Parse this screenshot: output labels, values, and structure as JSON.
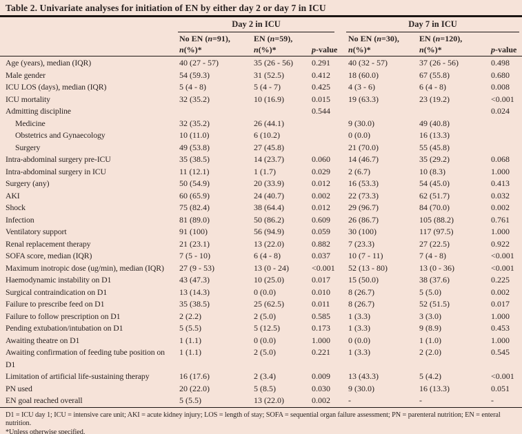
{
  "colors": {
    "background": "#f6e3d9",
    "text": "#2a2322",
    "rule": "#1b1513"
  },
  "title": "Table 2. Univariate analyses for initiation of EN by either day 2 or day 7 in ICU",
  "groups": {
    "day2": "Day 2 in ICU",
    "day7": "Day 7 in ICU"
  },
  "subheaders": {
    "d2_no": {
      "line1": "No EN (n=91),",
      "line2": "n(%)*"
    },
    "d2_en": {
      "line1": "EN (n=59),",
      "line2": "n(%)*"
    },
    "d2_p": {
      "line1": "",
      "line2": "p-value"
    },
    "d7_no": {
      "line1": "No EN (n=30),",
      "line2": "n(%)*"
    },
    "d7_en": {
      "line1": "EN (n=120),",
      "line2": "n(%)*"
    },
    "d7_p": {
      "line1": "",
      "line2": "p-value"
    }
  },
  "rows": [
    {
      "label": "Age (years), median (IQR)",
      "indent": false,
      "values": [
        "40 (27 - 57)",
        "35 (26 - 56)",
        "0.291",
        "40 (32 - 57)",
        "37 (26 - 56)",
        "0.498"
      ]
    },
    {
      "label": "Male gender",
      "indent": false,
      "values": [
        "54 (59.3)",
        "31 (52.5)",
        "0.412",
        "18 (60.0)",
        "67 (55.8)",
        "0.680"
      ]
    },
    {
      "label": "ICU LOS (days), median (IQR)",
      "indent": false,
      "values": [
        "5 (4 - 8)",
        "5 (4 - 7)",
        "0.425",
        "4 (3 - 6)",
        "6 (4 - 8)",
        "0.008"
      ]
    },
    {
      "label": "ICU mortality",
      "indent": false,
      "values": [
        "32 (35.2)",
        "10 (16.9)",
        "0.015",
        "19 (63.3)",
        "23 (19.2)",
        "<0.001"
      ]
    },
    {
      "label": "Admitting discipline",
      "indent": false,
      "values": [
        "",
        "",
        "0.544",
        "",
        "",
        "0.024"
      ]
    },
    {
      "label": "Medicine",
      "indent": true,
      "values": [
        "32 (35.2)",
        "26 (44.1)",
        "",
        "9 (30.0)",
        "49 (40.8)",
        ""
      ]
    },
    {
      "label": "Obstetrics and Gynaecology",
      "indent": true,
      "values": [
        "10 (11.0)",
        "6 (10.2)",
        "",
        "0 (0.0)",
        "16 (13.3)",
        ""
      ]
    },
    {
      "label": "Surgery",
      "indent": true,
      "values": [
        "49 (53.8)",
        "27 (45.8)",
        "",
        "21 (70.0)",
        "55 (45.8)",
        ""
      ]
    },
    {
      "label": "Intra-abdominal surgery pre-ICU",
      "indent": false,
      "values": [
        "35 (38.5)",
        "14 (23.7)",
        "0.060",
        "14 (46.7)",
        "35 (29.2)",
        "0.068"
      ]
    },
    {
      "label": "Intra-abdominal surgery in ICU",
      "indent": false,
      "values": [
        "11 (12.1)",
        "1 (1.7)",
        "0.029",
        "2 (6.7)",
        "10 (8.3)",
        "1.000"
      ]
    },
    {
      "label": "Surgery (any)",
      "indent": false,
      "values": [
        "50 (54.9)",
        "20 (33.9)",
        "0.012",
        "16 (53.3)",
        "54 (45.0)",
        "0.413"
      ]
    },
    {
      "label": "AKI",
      "indent": false,
      "values": [
        "60 (65.9)",
        "24 (40.7)",
        "0.002",
        "22 (73.3)",
        "62 (51.7)",
        "0.032"
      ]
    },
    {
      "label": "Shock",
      "indent": false,
      "values": [
        "75 (82.4)",
        "38 (64.4)",
        "0.012",
        "29 (96.7)",
        "84 (70.0)",
        "0.002"
      ]
    },
    {
      "label": "Infection",
      "indent": false,
      "values": [
        "81 (89.0)",
        "50 (86.2)",
        "0.609",
        "26 (86.7)",
        "105 (88.2)",
        "0.761"
      ]
    },
    {
      "label": "Ventilatory support",
      "indent": false,
      "values": [
        "91 (100)",
        "56 (94.9)",
        "0.059",
        "30 (100)",
        "117 (97.5)",
        "1.000"
      ]
    },
    {
      "label": "Renal replacement therapy",
      "indent": false,
      "values": [
        "21 (23.1)",
        "13 (22.0)",
        "0.882",
        "7 (23.3)",
        "27 (22.5)",
        "0.922"
      ]
    },
    {
      "label": "SOFA score, median (IQR)",
      "indent": false,
      "values": [
        "7 (5 - 10)",
        "6 (4 - 8)",
        "0.037",
        "10 (7 - 11)",
        "7 (4 - 8)",
        "<0.001"
      ]
    },
    {
      "label": "Maximum inotropic dose (ug/min), median (IQR)",
      "indent": false,
      "values": [
        "27 (9 - 53)",
        "13 (0 - 24)",
        "<0.001",
        "52 (13 - 80)",
        "13 (0 - 36)",
        "<0.001"
      ]
    },
    {
      "label": "Haemodynamic instability on D1",
      "indent": false,
      "values": [
        "43 (47.3)",
        "10 (25.0)",
        "0.017",
        "15 (50.0)",
        "38 (37.6)",
        "0.225"
      ]
    },
    {
      "label": "Surgical contraindication on D1",
      "indent": false,
      "values": [
        "13 (14.3)",
        "0 (0.0)",
        "0.010",
        "8 (26.7)",
        "5 (5.0)",
        "0.002"
      ]
    },
    {
      "label": "Failure to prescribe feed on D1",
      "indent": false,
      "values": [
        "35 (38.5)",
        "25 (62.5)",
        "0.011",
        "8 (26.7)",
        "52 (51.5)",
        "0.017"
      ]
    },
    {
      "label": "Failure to follow prescription on D1",
      "indent": false,
      "values": [
        "2 (2.2)",
        "2 (5.0)",
        "0.585",
        "1 (3.3)",
        "3 (3.0)",
        "1.000"
      ]
    },
    {
      "label": "Pending extubation/intubation on D1",
      "indent": false,
      "values": [
        "5 (5.5)",
        "5 (12.5)",
        "0.173",
        "1 (3.3)",
        "9 (8.9)",
        "0.453"
      ]
    },
    {
      "label": "Awaiting theatre on D1",
      "indent": false,
      "values": [
        "1 (1.1)",
        "0 (0.0)",
        "1.000",
        "0 (0.0)",
        "1 (1.0)",
        "1.000"
      ]
    },
    {
      "label": "Awaiting confirmation of feeding tube position on D1",
      "indent": false,
      "values": [
        "1 (1.1)",
        "2 (5.0)",
        "0.221",
        "1 (3.3)",
        "2 (2.0)",
        "0.545"
      ]
    },
    {
      "label": "Limitation of artificial life-sustaining therapy",
      "indent": false,
      "values": [
        "16 (17.6)",
        "2 (3.4)",
        "0.009",
        "13 (43.3)",
        "5 (4.2)",
        "<0.001"
      ]
    },
    {
      "label": "PN used",
      "indent": false,
      "values": [
        "20 (22.0)",
        "5 (8.5)",
        "0.030",
        "9 (30.0)",
        "16 (13.3)",
        "0.051"
      ]
    },
    {
      "label": "EN goal reached overall",
      "indent": false,
      "values": [
        "5 (5.5)",
        "13 (22.0)",
        "0.002",
        "-",
        "-",
        "-"
      ]
    }
  ],
  "footnotes": [
    "D1 = ICU day 1; ICU = intensive care unit; AKI = acute kidney injury; LOS = length of stay; SOFA = sequential organ failure assessment; PN = parenteral nutrition; EN = enteral nutrition.",
    "*Unless otherwise specified."
  ]
}
